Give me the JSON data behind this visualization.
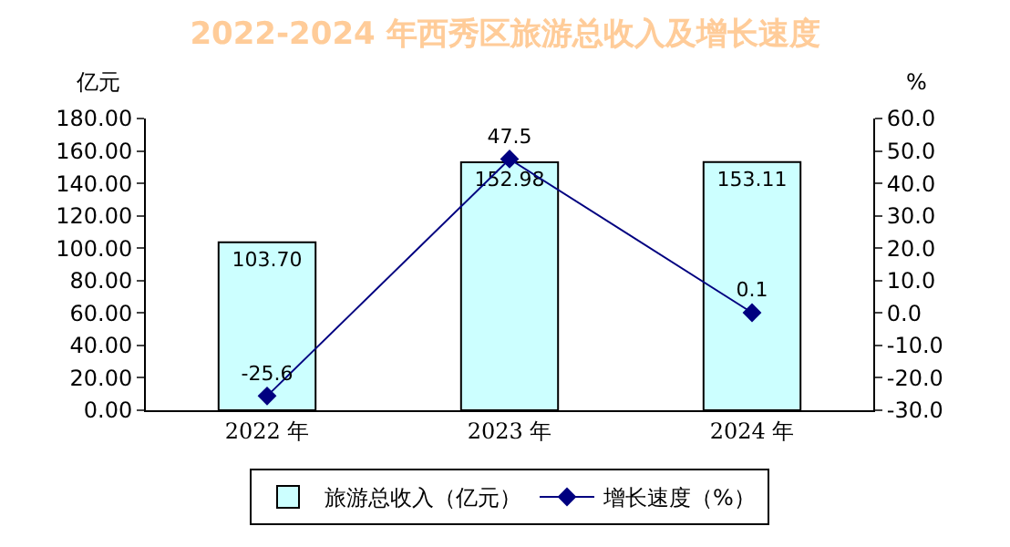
{
  "chart_data": {
    "type": "bar",
    "title": "2022-2024 年西秀区旅游总收入及增长速度",
    "ylabel": "亿元",
    "y2label": "%",
    "categories": [
      "2022 年",
      "2023 年",
      "2024 年"
    ],
    "series": [
      {
        "name": "旅游总收入（亿元）",
        "color": "#ccffff",
        "values": [
          103.7,
          152.98,
          153.11
        ],
        "value_labels": [
          "103.70",
          "152.98",
          "153.11"
        ]
      },
      {
        "name": "增长速度（%）",
        "type": "line",
        "axis": "y2",
        "color": "#000080",
        "values": [
          -25.6,
          47.5,
          0.1
        ],
        "value_labels": [
          "-25.6",
          "47.5",
          "0.1"
        ],
        "marker": "diamond",
        "line_style": "solid"
      }
    ],
    "ylim": [
      0,
      180
    ],
    "yticks": [
      {
        "value": 0,
        "label": "0.00"
      },
      {
        "value": 20,
        "label": "20.00"
      },
      {
        "value": 40,
        "label": "40.00"
      },
      {
        "value": 60,
        "label": "60.00"
      },
      {
        "value": 80,
        "label": "80.00"
      },
      {
        "value": 100,
        "label": "100.00"
      },
      {
        "value": 120,
        "label": "120.00"
      },
      {
        "value": 140,
        "label": "140.00"
      },
      {
        "value": 160,
        "label": "160.00"
      },
      {
        "value": 180,
        "label": "180.00"
      }
    ],
    "y2lim": [
      -30,
      60
    ],
    "y2ticks": [
      {
        "value": -30,
        "label": "-30.0"
      },
      {
        "value": -20,
        "label": "-20.0"
      },
      {
        "value": -10,
        "label": "-10.0"
      },
      {
        "value": 0,
        "label": "0.0"
      },
      {
        "value": 10,
        "label": "10.0"
      },
      {
        "value": 20,
        "label": "20.0"
      },
      {
        "value": 30,
        "label": "30.0"
      },
      {
        "value": 40,
        "label": "40.0"
      },
      {
        "value": 50,
        "label": "50.0"
      },
      {
        "value": 60,
        "label": "60.0"
      }
    ],
    "grid": false,
    "legend": "bottom"
  }
}
